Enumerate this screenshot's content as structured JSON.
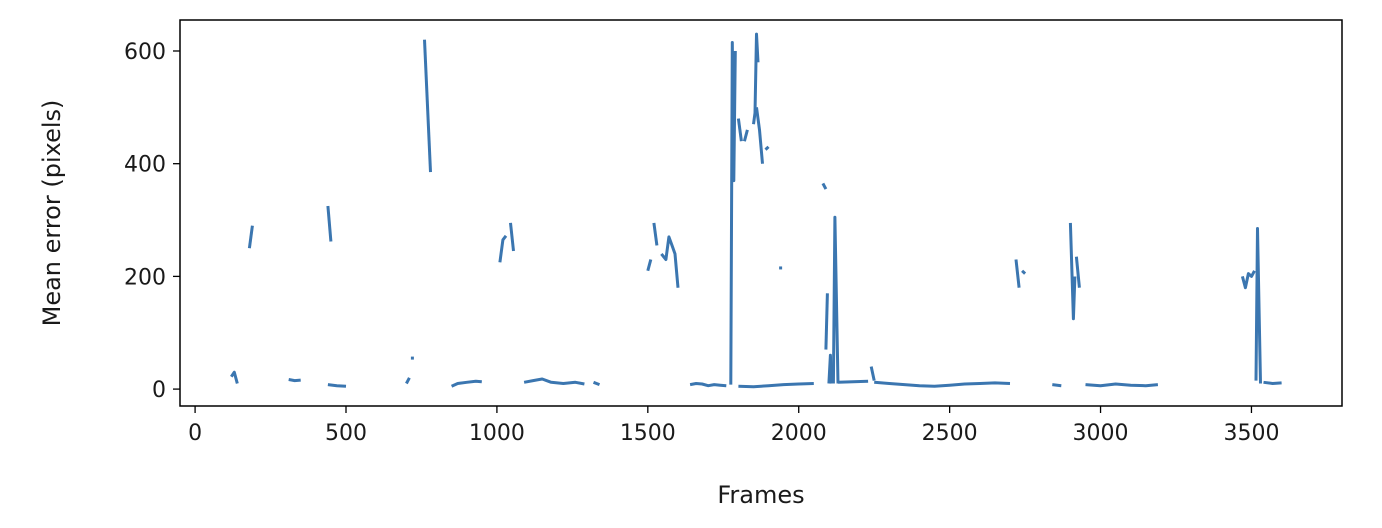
{
  "chart_data": {
    "type": "line",
    "title": "",
    "xlabel": "Frames",
    "ylabel": "Mean error (pixels)",
    "xlim": [
      -50,
      3800
    ],
    "ylim": [
      -30,
      655
    ],
    "x_ticks": [
      0,
      500,
      1000,
      1500,
      2000,
      2500,
      3000,
      3500
    ],
    "y_ticks": [
      0,
      200,
      400,
      600
    ],
    "grid": false,
    "line_color": "#3b76b0",
    "series": [
      {
        "segments": [
          [
            [
              120,
              22
            ],
            [
              130,
              30
            ],
            [
              140,
              10
            ]
          ],
          [
            [
              180,
              250
            ],
            [
              190,
              290
            ]
          ],
          [
            [
              310,
              17
            ],
            [
              330,
              15
            ],
            [
              350,
              16
            ]
          ],
          [
            [
              440,
              325
            ],
            [
              450,
              262
            ]
          ],
          [
            [
              440,
              8
            ],
            [
              470,
              6
            ],
            [
              500,
              5
            ]
          ],
          [
            [
              700,
              10
            ],
            [
              710,
              20
            ]
          ],
          [
            [
              720,
              55
            ]
          ],
          [
            [
              760,
              620
            ],
            [
              780,
              385
            ]
          ],
          [
            [
              850,
              5
            ],
            [
              870,
              10
            ],
            [
              900,
              12
            ],
            [
              930,
              14
            ],
            [
              950,
              13
            ]
          ],
          [
            [
              1010,
              225
            ],
            [
              1020,
              265
            ],
            [
              1030,
              272
            ]
          ],
          [
            [
              1045,
              295
            ],
            [
              1055,
              245
            ]
          ],
          [
            [
              1090,
              12
            ],
            [
              1120,
              15
            ],
            [
              1150,
              18
            ],
            [
              1180,
              12
            ],
            [
              1220,
              10
            ],
            [
              1260,
              12
            ],
            [
              1290,
              9
            ]
          ],
          [
            [
              1320,
              12
            ],
            [
              1340,
              8
            ]
          ],
          [
            [
              1500,
              210
            ],
            [
              1510,
              230
            ]
          ],
          [
            [
              1520,
              295
            ],
            [
              1530,
              255
            ]
          ],
          [
            [
              1545,
              240
            ],
            [
              1560,
              230
            ],
            [
              1570,
              270
            ],
            [
              1580,
              255
            ],
            [
              1590,
              240
            ],
            [
              1600,
              180
            ]
          ],
          [
            [
              1640,
              8
            ],
            [
              1660,
              10
            ],
            [
              1680,
              9
            ],
            [
              1700,
              6
            ],
            [
              1720,
              8
            ],
            [
              1740,
              7
            ],
            [
              1760,
              6
            ]
          ],
          [
            [
              1775,
              8
            ],
            [
              1780,
              615
            ],
            [
              1785,
              370
            ],
            [
              1790,
              600
            ]
          ],
          [
            [
              1800,
              480
            ],
            [
              1810,
              440
            ]
          ],
          [
            [
              1820,
              440
            ],
            [
              1830,
              460
            ]
          ],
          [
            [
              1850,
              470
            ],
            [
              1855,
              490
            ],
            [
              1860,
              630
            ],
            [
              1865,
              580
            ]
          ],
          [
            [
              1860,
              500
            ],
            [
              1870,
              460
            ],
            [
              1880,
              400
            ]
          ],
          [
            [
              1890,
              425
            ],
            [
              1900,
              430
            ]
          ],
          [
            [
              1940,
              215
            ]
          ],
          [
            [
              1800,
              5
            ],
            [
              1850,
              4
            ],
            [
              1900,
              6
            ],
            [
              1950,
              8
            ],
            [
              2000,
              9
            ],
            [
              2050,
              10
            ]
          ],
          [
            [
              2080,
              365
            ],
            [
              2090,
              355
            ]
          ],
          [
            [
              2090,
              70
            ],
            [
              2095,
              170
            ]
          ],
          [
            [
              2100,
              10
            ],
            [
              2105,
              60
            ],
            [
              2110,
              10
            ]
          ],
          [
            [
              2115,
              10
            ],
            [
              2120,
              305
            ],
            [
              2130,
              10
            ]
          ],
          [
            [
              2130,
              12
            ],
            [
              2180,
              13
            ],
            [
              2230,
              14
            ]
          ],
          [
            [
              2240,
              40
            ],
            [
              2250,
              15
            ]
          ],
          [
            [
              2250,
              12
            ],
            [
              2300,
              10
            ],
            [
              2350,
              8
            ],
            [
              2400,
              6
            ],
            [
              2450,
              5
            ],
            [
              2500,
              7
            ],
            [
              2550,
              9
            ],
            [
              2600,
              10
            ],
            [
              2650,
              11
            ],
            [
              2700,
              10
            ]
          ],
          [
            [
              2720,
              230
            ],
            [
              2730,
              180
            ]
          ],
          [
            [
              2740,
              210
            ],
            [
              2750,
              205
            ]
          ],
          [
            [
              2840,
              8
            ],
            [
              2870,
              6
            ]
          ],
          [
            [
              2900,
              295
            ],
            [
              2910,
              125
            ],
            [
              2915,
              200
            ]
          ],
          [
            [
              2920,
              235
            ],
            [
              2930,
              180
            ]
          ],
          [
            [
              2950,
              8
            ],
            [
              3000,
              6
            ],
            [
              3050,
              9
            ],
            [
              3100,
              7
            ],
            [
              3150,
              6
            ],
            [
              3190,
              8
            ]
          ],
          [
            [
              3470,
              200
            ],
            [
              3480,
              180
            ],
            [
              3490,
              205
            ],
            [
              3500,
              200
            ],
            [
              3510,
              210
            ]
          ],
          [
            [
              3515,
              15
            ],
            [
              3520,
              285
            ],
            [
              3530,
              10
            ]
          ],
          [
            [
              3540,
              12
            ],
            [
              3570,
              10
            ],
            [
              3600,
              11
            ]
          ]
        ]
      }
    ]
  }
}
